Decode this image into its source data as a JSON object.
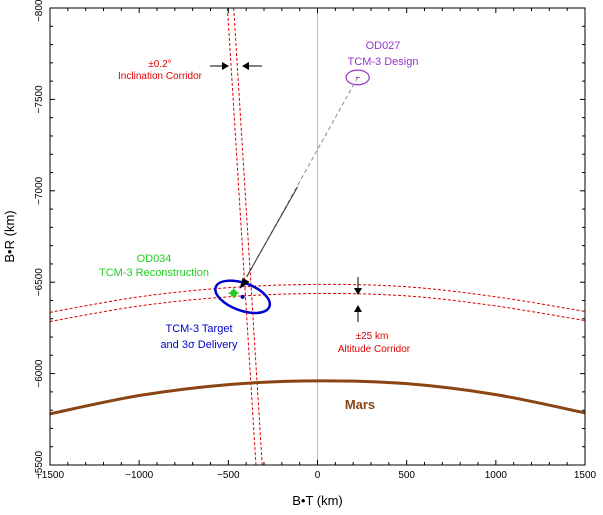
{
  "chart_data": {
    "type": "scatter",
    "xlabel": "B•T (km)",
    "ylabel": "B•R (km)",
    "xlim": [
      -1500,
      1500
    ],
    "ylim": [
      -8000,
      -5500
    ],
    "y_axis_inverted": true,
    "x_ticks": [
      -1500,
      -1000,
      -500,
      0,
      500,
      1000,
      1500
    ],
    "x_tick_labels": [
      "−1500",
      "−1000",
      "−500",
      "0",
      "500",
      "1000",
      "1500"
    ],
    "y_ticks": [
      -8000,
      -7500,
      -7000,
      -6500,
      -6000,
      -5500
    ],
    "y_tick_labels": [
      "−8000",
      "−7500",
      "−7000",
      "−6500",
      "−6000",
      "−5500"
    ],
    "grid": false,
    "zero_line_x": 0,
    "mars_surface": {
      "label": "Mars",
      "color": "#8b4513",
      "x": [
        -1500,
        -1000,
        -500,
        0,
        500,
        1000,
        1500
      ],
      "y": [
        -5780,
        -5880,
        -5940,
        -5960,
        -5945,
        -5885,
        -5785
      ]
    },
    "altitude_corridor": {
      "label": "±25 km",
      "label2": "Altitude Corridor",
      "color": "#dd0000",
      "upper": {
        "x": [
          -1500,
          -1000,
          -500,
          0,
          500,
          1000,
          1500
        ],
        "y": [
          -6335,
          -6420,
          -6470,
          -6488,
          -6475,
          -6420,
          -6340
        ]
      },
      "lower": {
        "x": [
          -1500,
          -1000,
          -500,
          0,
          500,
          1000,
          1500
        ],
        "y": [
          -6285,
          -6370,
          -6420,
          -6438,
          -6425,
          -6370,
          -6290
        ]
      }
    },
    "inclination_corridor": {
      "label": "±0.2°",
      "label2": "Inclination Corridor",
      "color": "#dd0000",
      "left": {
        "x": [
          -505,
          -345
        ],
        "y": [
          -8000,
          -5500
        ]
      },
      "right": {
        "x": [
          -470,
          -310
        ],
        "y": [
          -8000,
          -5500
        ]
      }
    },
    "od027": {
      "label": "OD027",
      "label2": "TCM-3 Design",
      "color": "#9933cc",
      "center": {
        "x": 225,
        "y": -7620
      },
      "radius_x": 65,
      "radius_y": 40
    },
    "od034": {
      "label": "OD034",
      "label2": "TCM-3 Reconstruction",
      "color": "#22cc22",
      "center": {
        "x": -470,
        "y": -6440
      }
    },
    "target": {
      "label": "TCM-3 Target",
      "label2": "and 3σ Delivery",
      "color": "#0000cc",
      "center": {
        "x": -420,
        "y": -6420
      },
      "radius_x": 160,
      "radius_y": 75
    }
  }
}
